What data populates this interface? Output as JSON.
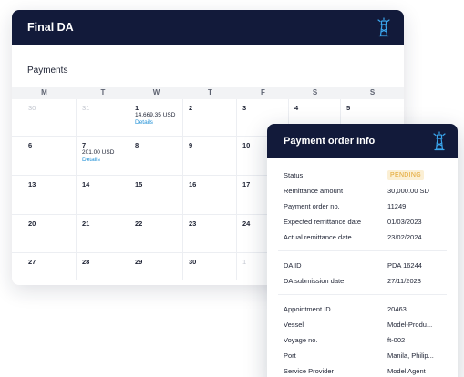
{
  "calendar": {
    "title": "Final DA",
    "section": "Payments",
    "weekdays": [
      "M",
      "T",
      "W",
      "T",
      "F",
      "S",
      "S"
    ],
    "cells": [
      {
        "day": "30",
        "muted": true
      },
      {
        "day": "31",
        "muted": true
      },
      {
        "day": "1",
        "amount": "14,669.35 USD",
        "details": "Details"
      },
      {
        "day": "2"
      },
      {
        "day": "3"
      },
      {
        "day": "4"
      },
      {
        "day": "5"
      },
      {
        "day": "6"
      },
      {
        "day": "7",
        "amount": "201.00 USD",
        "details": "Details"
      },
      {
        "day": "8"
      },
      {
        "day": "9"
      },
      {
        "day": "10"
      },
      {
        "day": ""
      },
      {
        "day": ""
      },
      {
        "day": "13"
      },
      {
        "day": "14"
      },
      {
        "day": "15"
      },
      {
        "day": "16"
      },
      {
        "day": "17"
      },
      {
        "day": ""
      },
      {
        "day": ""
      },
      {
        "day": "20"
      },
      {
        "day": "21"
      },
      {
        "day": "22"
      },
      {
        "day": "23"
      },
      {
        "day": "24"
      },
      {
        "day": ""
      },
      {
        "day": ""
      },
      {
        "day": "27"
      },
      {
        "day": "28"
      },
      {
        "day": "29"
      },
      {
        "day": "30"
      },
      {
        "day": "1",
        "muted": true
      },
      {
        "day": ""
      },
      {
        "day": ""
      }
    ]
  },
  "payment_order": {
    "title": "Payment order Info",
    "groups": [
      [
        {
          "label": "Status",
          "value": "PENDING",
          "badge": true
        },
        {
          "label": "Remittance amount",
          "value": "30,000.00 SD"
        },
        {
          "label": "Payment order no.",
          "value": "11249"
        },
        {
          "label": "Expected remittance date",
          "value": "01/03/2023"
        },
        {
          "label": "Actual remittance date",
          "value": "23/02/2024"
        }
      ],
      [
        {
          "label": "DA ID",
          "value": "PDA 16244"
        },
        {
          "label": "DA submission date",
          "value": "27/11/2023"
        }
      ],
      [
        {
          "label": "Appointment ID",
          "value": "20463"
        },
        {
          "label": "Vessel",
          "value": "Model-Produ..."
        },
        {
          "label": "Voyage no.",
          "value": "ft-002"
        },
        {
          "label": "Port",
          "value": "Manila, Philip..."
        },
        {
          "label": "Service Provider",
          "value": "Model Agent"
        }
      ]
    ]
  },
  "colors": {
    "header_bg": "#121a3a",
    "accent": "#1e8fd6",
    "pending_bg": "#fbefd4",
    "pending_text": "#e2a22a"
  },
  "icons": {
    "header_icon": "lighthouse-icon"
  }
}
